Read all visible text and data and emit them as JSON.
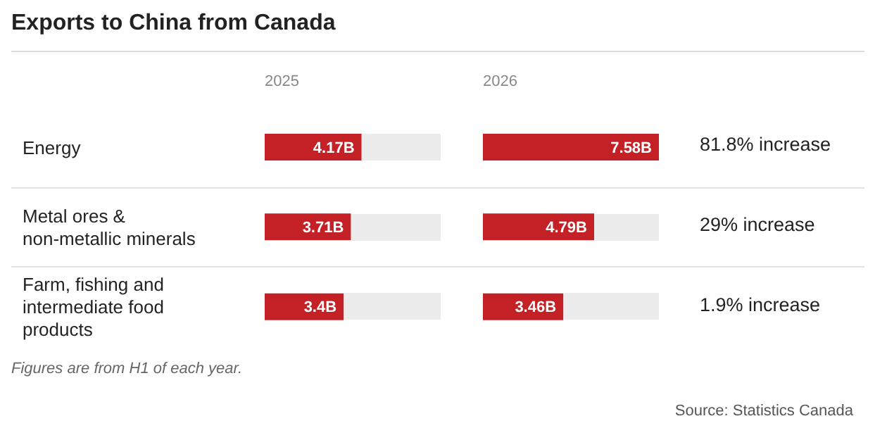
{
  "chart_data": [
    {
      "type": "bar",
      "orientation": "horizontal",
      "title": "Exports to China from Canada",
      "xlabel": "2025",
      "categories": [
        "Energy",
        "Metal ores & non-metallic minerals",
        "Farm, fishing and intermediate food products"
      ],
      "values": [
        4.17,
        3.71,
        3.4
      ],
      "value_labels": [
        "4.17B",
        "3.71B",
        "3.4B"
      ],
      "color": "#c42127",
      "tick_labels": "y",
      "annotations": [
        "Figures are from H1 of each year.",
        "Source: Statistics Canada"
      ]
    },
    {
      "type": "bar",
      "orientation": "horizontal",
      "xlabel": "2026",
      "categories": [
        null,
        null,
        null
      ],
      "values": [
        7.58,
        4.79,
        3.46
      ],
      "value_labels": [
        "7.58B",
        "4.79B",
        "3.46B"
      ],
      "color": "#c42127",
      "tick_labels": false,
      "annotations": [
        "81.8% increase",
        "29% increase",
        "1.9% increase"
      ]
    }
  ]
}
